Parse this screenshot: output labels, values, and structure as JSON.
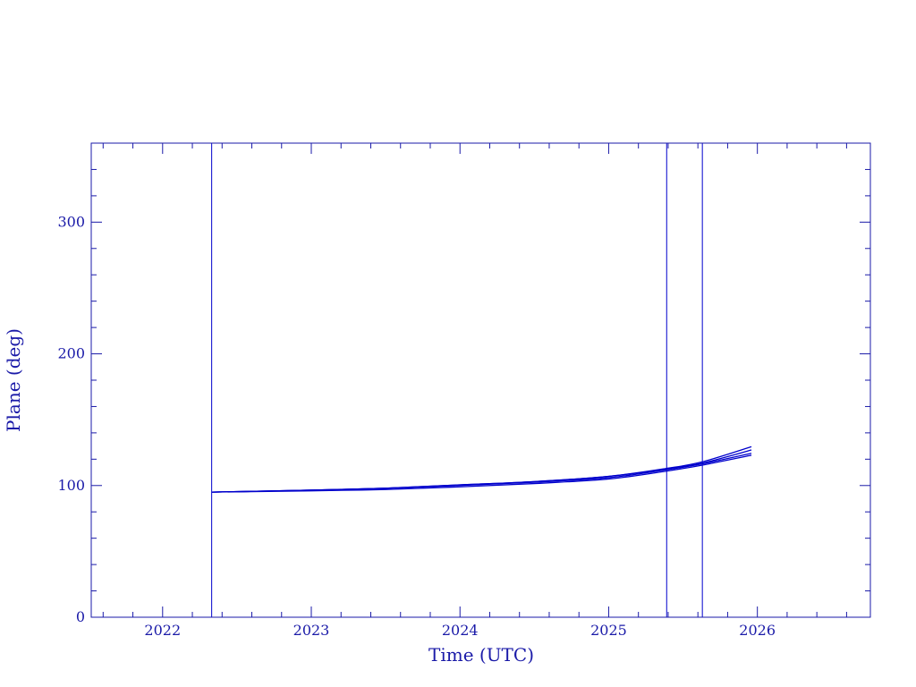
{
  "chart_data": {
    "type": "line",
    "title": "",
    "xlabel": "Time (UTC)",
    "ylabel": "Plane (deg)",
    "xlim": [
      2021.52,
      2026.76
    ],
    "ylim": [
      0,
      360
    ],
    "x_ticks": [
      "2022",
      "2023",
      "2024",
      "2025",
      "2026"
    ],
    "y_ticks": [
      "0",
      "100",
      "200",
      "300"
    ],
    "grid": false,
    "legend": "none",
    "colors": {
      "axes": "#1a1aa8",
      "lines": "#0000cc"
    },
    "vertical_markers": [
      2022.33,
      2025.39,
      2025.63
    ],
    "series": [
      {
        "x": [
          2022.33,
          2023.0,
          2023.5,
          2024.0,
          2024.5,
          2025.0,
          2025.39,
          2025.63,
          2025.96
        ],
        "y": [
          95,
          96.5,
          98,
          100.5,
          103,
          107,
          113,
          118,
          129.5
        ]
      },
      {
        "x": [
          2022.33,
          2023.0,
          2023.5,
          2024.0,
          2024.5,
          2025.0,
          2025.39,
          2025.63,
          2025.96
        ],
        "y": [
          95,
          96.5,
          98,
          100.5,
          103,
          107,
          112.5,
          117,
          127
        ]
      },
      {
        "x": [
          2022.33,
          2023.0,
          2023.5,
          2024.0,
          2024.5,
          2025.0,
          2025.39,
          2025.63,
          2025.96
        ],
        "y": [
          95,
          96.5,
          98,
          100,
          102.5,
          106,
          112,
          116.5,
          124.5
        ]
      },
      {
        "x": [
          2022.33,
          2023.0,
          2023.5,
          2024.0,
          2024.5,
          2025.0,
          2025.39,
          2025.63,
          2025.96
        ],
        "y": [
          95,
          96,
          97,
          99,
          101.5,
          105,
          111,
          115.5,
          123
        ]
      }
    ]
  }
}
